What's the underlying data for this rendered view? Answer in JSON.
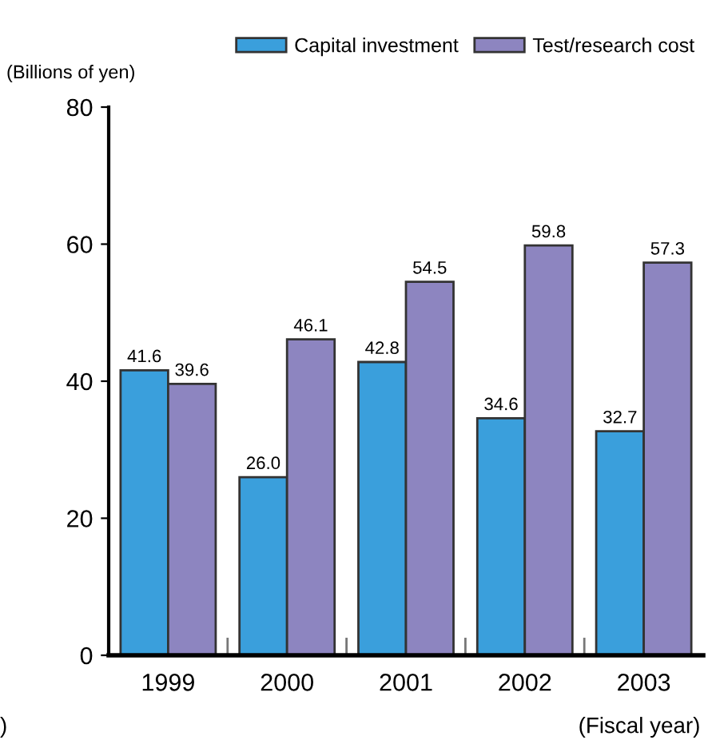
{
  "chart_data": {
    "type": "bar",
    "categories": [
      "1999",
      "2000",
      "2001",
      "2002",
      "2003"
    ],
    "series": [
      {
        "name": "Capital investment",
        "color": "#3a9fdc",
        "values": [
          41.6,
          26.0,
          42.8,
          34.6,
          32.7
        ],
        "value_labels": [
          "41.6",
          "26.0",
          "42.8",
          "34.6",
          "32.7"
        ]
      },
      {
        "name": "Test/research cost",
        "color": "#8d85c0",
        "values": [
          39.6,
          46.1,
          54.5,
          59.8,
          57.3
        ],
        "value_labels": [
          "39.6",
          "46.1",
          "54.5",
          "59.8",
          "57.3"
        ]
      }
    ],
    "ylabel": "(Billions of yen)",
    "xlabel": "(Fiscal year)",
    "ylim": [
      0,
      80
    ],
    "yticks": [
      0,
      20,
      40,
      60,
      80
    ],
    "legend": "top",
    "grid": false,
    "annotations": [
      ")"
    ]
  }
}
